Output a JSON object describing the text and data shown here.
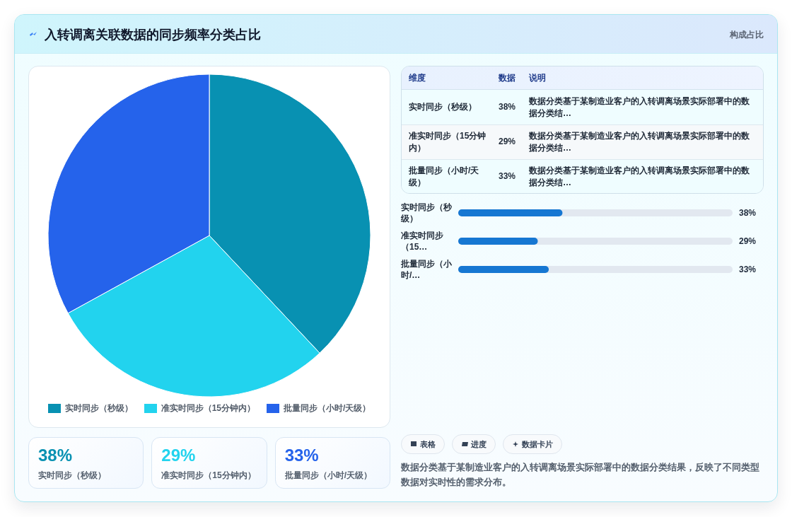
{
  "chart_data": [
    {
      "type": "other",
      "title": "入转调离关联数据的同步频率分类占比",
      "subtitle": "构成占比"
    },
    {
      "type": "pie",
      "categories": [
        "实时同步（秒级）",
        "准实时同步（15分钟内）",
        "批量同步（小时/天级）"
      ],
      "values": [
        38,
        29,
        33
      ],
      "colors": [
        "#0891b2",
        "#22d3ee",
        "#2563eb"
      ],
      "legend": "bottom"
    },
    {
      "type": "other",
      "categories": [
        "实时同步（秒级）",
        "准实时同步（15分钟内）",
        "批量同步（小时/天级）"
      ],
      "value_labels": [
        "38%",
        "29%",
        "33%"
      ],
      "annotations": [
        "维度",
        "数据",
        "说明",
        "数据分类基于某制造业客户的入转调离场景实际部署中的数据分类结…",
        "数据分类基于某制造业客户的入转调离场景实际部署中的数据分类结…",
        "数据分类基于某制造业客户的入转调离场景实际部署中的数据分类结…"
      ]
    },
    {
      "type": "bar",
      "orientation": "horizontal",
      "categories": [
        "实时同步（秒级）",
        "准实时同步（15…",
        "批量同步（小时/…"
      ],
      "values": [
        38,
        29,
        33
      ],
      "value_labels": [
        "38%",
        "29%",
        "33%"
      ],
      "color": "#1677d2",
      "xlim": [
        0,
        100
      ]
    },
    {
      "type": "other",
      "categories": [
        "表格",
        "进度",
        "数据卡片"
      ],
      "annotations": [
        "数据分类基于某制造业客户的入转调离场景实际部署中的数据分类结果，反映了不同类型数据对实时性的需求分布。"
      ]
    },
    {
      "type": "other",
      "categories": [
        "实时同步（秒级）",
        "准实时同步（15分钟内）",
        "批量同步（小时/天级）"
      ],
      "value_labels": [
        "38%",
        "29%",
        "33%"
      ]
    }
  ]
}
